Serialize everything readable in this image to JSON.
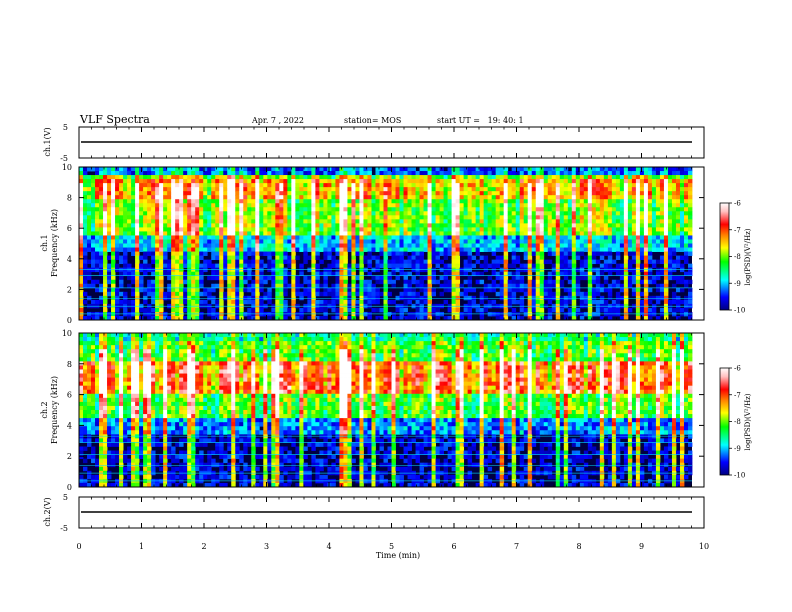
{
  "header": {
    "title": "VLF Spectra",
    "date": "Apr. 7 , 2022",
    "station": "station= MOS",
    "start": "start UT =   19: 40: 1"
  },
  "chart_data": [
    {
      "type": "line",
      "name": "ch1-voltage",
      "ylabel": "ch.1(V)",
      "ylim": [
        -5,
        5
      ],
      "yticks": [
        "5",
        "-5"
      ],
      "baseline": 0
    },
    {
      "type": "heatmap",
      "name": "ch1-spectrogram",
      "ylabel_channel": "ch.1",
      "ylabel": "Frequency (kHz)",
      "ylim": [
        0,
        10
      ],
      "yticks": [
        "0",
        "2",
        "4",
        "6",
        "8",
        "10"
      ],
      "dominant_band_khz": [
        5,
        10
      ],
      "colorbar": {
        "label": "log(PSD)(V²/Hz)",
        "range": [
          -10,
          -6
        ],
        "ticks": [
          "-6",
          "-7",
          "-8",
          "-9",
          "-10"
        ],
        "colors": [
          "#000080",
          "#0000ff",
          "#00ffff",
          "#00ff00",
          "#ffff00",
          "#ff8000",
          "#ff0000",
          "#ffc0c0",
          "#ffffff"
        ]
      }
    },
    {
      "type": "heatmap",
      "name": "ch2-spectrogram",
      "ylabel_channel": "ch.2",
      "ylabel": "Frequency (kHz)",
      "ylim": [
        0,
        10
      ],
      "yticks": [
        "0",
        "2",
        "4",
        "6",
        "8",
        "10"
      ],
      "dominant_band_khz": [
        4,
        9
      ],
      "colorbar": {
        "label": "log(PSD)(V²/Hz)",
        "range": [
          -10,
          -6
        ],
        "ticks": [
          "-6",
          "-7",
          "-8",
          "-9",
          "-10"
        ],
        "colors": [
          "#000080",
          "#0000ff",
          "#00ffff",
          "#00ff00",
          "#ffff00",
          "#ff8000",
          "#ff0000",
          "#ffc0c0",
          "#ffffff"
        ]
      }
    },
    {
      "type": "line",
      "name": "ch2-voltage",
      "ylabel": "ch.2(V)",
      "ylim": [
        -5,
        5
      ],
      "yticks": [
        "5",
        "-5"
      ],
      "baseline": 0
    }
  ],
  "xaxis": {
    "label": "Time (min)",
    "xlim": [
      0,
      10
    ],
    "ticks": [
      "0",
      "1",
      "2",
      "3",
      "4",
      "5",
      "6",
      "7",
      "8",
      "9",
      "10"
    ]
  }
}
